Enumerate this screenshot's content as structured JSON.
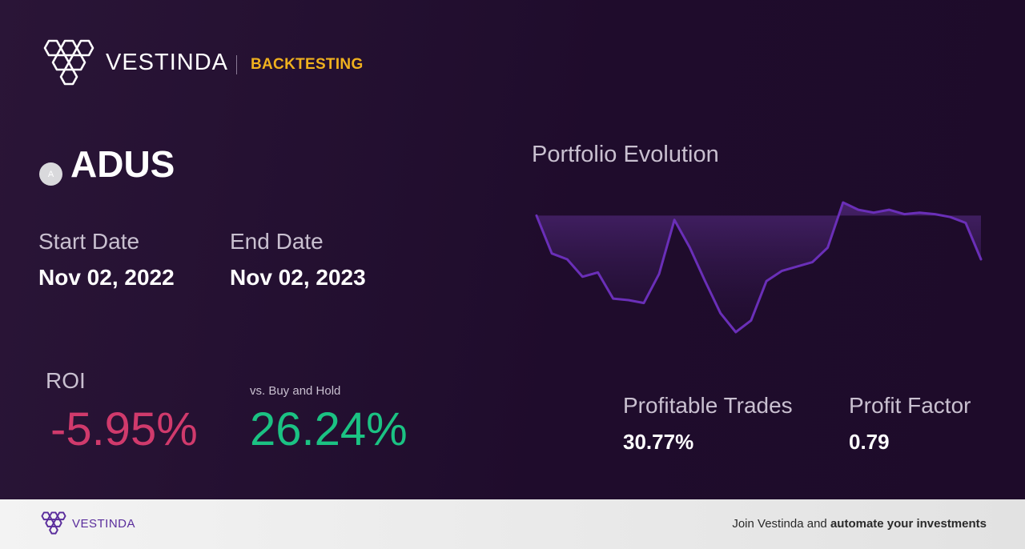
{
  "header": {
    "brand": "VESTINDA",
    "section": "BACKTESTING",
    "logo_icon": "vestinda-hexagon-logo-icon"
  },
  "ticker": {
    "badge_letter": "A",
    "symbol": "ADUS"
  },
  "dates": {
    "start_label": "Start Date",
    "start_value": "Nov 02, 2022",
    "end_label": "End Date",
    "end_value": "Nov 02, 2023"
  },
  "roi": {
    "label": "ROI",
    "value": "-5.95%",
    "buy_hold_label": "vs. Buy and Hold",
    "buy_hold_value": "26.24%"
  },
  "chart_data": {
    "type": "area",
    "title": "Portfolio Evolution",
    "series": [
      {
        "values": [
          100,
          74,
          70,
          58,
          61,
          43,
          42,
          40,
          60,
          97,
          78,
          55,
          33,
          20,
          28,
          55,
          62,
          65,
          68,
          78,
          109,
          104,
          102,
          104,
          101,
          102,
          101,
          99,
          95,
          70
        ]
      }
    ],
    "colors": {
      "line": "#6a2fb8",
      "fill_top": "#4a2470",
      "fill_bottom": "#25103a"
    },
    "grid": false,
    "axes_visible": false
  },
  "stats": {
    "profitable_trades_label": "Profitable Trades",
    "profitable_trades_value": "30.77%",
    "profit_factor_label": "Profit Factor",
    "profit_factor_value": "0.79"
  },
  "footer": {
    "brand": "VESTINDA",
    "cta_prefix": "Join Vestinda and ",
    "cta_bold": "automate your investments"
  },
  "colors": {
    "accent": "#f0b11e",
    "negative": "#d03a6c",
    "positive": "#1bc283",
    "brand_purple": "#5a2d9c"
  }
}
